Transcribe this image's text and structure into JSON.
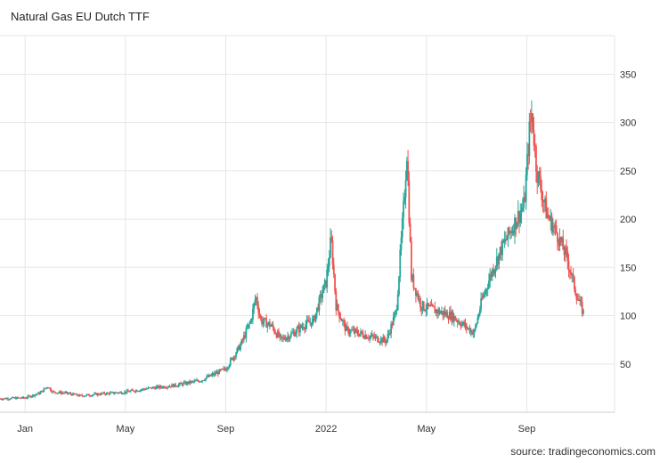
{
  "title": "Natural Gas EU Dutch TTF",
  "source": "source: tradingeconomics.com",
  "chart_data": {
    "type": "candlestick",
    "title": "Natural Gas EU Dutch TTF",
    "xlabel": "",
    "ylabel": "",
    "ylim": [
      0,
      390
    ],
    "y_ticks": [
      50,
      100,
      150,
      200,
      250,
      300,
      350
    ],
    "x_ticks": [
      "Jan",
      "May",
      "Sep",
      "2022",
      "May",
      "Sep"
    ],
    "x_tick_months": [
      1,
      5,
      9,
      13,
      17,
      21
    ],
    "x_range_months": [
      0,
      24.5
    ],
    "grid": true,
    "up_color": "#26a69a",
    "down_color": "#ef5350",
    "price_path": [
      [
        0.0,
        14
      ],
      [
        1.0,
        15
      ],
      [
        1.6,
        20
      ],
      [
        1.9,
        27
      ],
      [
        2.1,
        21
      ],
      [
        2.6,
        20
      ],
      [
        3.2,
        17
      ],
      [
        4.0,
        19
      ],
      [
        5.0,
        21
      ],
      [
        6.0,
        25
      ],
      [
        7.0,
        28
      ],
      [
        8.0,
        33
      ],
      [
        9.0,
        45
      ],
      [
        9.6,
        70
      ],
      [
        10.0,
        95
      ],
      [
        10.2,
        120
      ],
      [
        10.4,
        95
      ],
      [
        10.8,
        90
      ],
      [
        11.2,
        75
      ],
      [
        11.7,
        82
      ],
      [
        12.1,
        90
      ],
      [
        12.5,
        95
      ],
      [
        12.8,
        120
      ],
      [
        13.0,
        135
      ],
      [
        13.2,
        180
      ],
      [
        13.4,
        110
      ],
      [
        13.8,
        85
      ],
      [
        14.3,
        82
      ],
      [
        14.8,
        78
      ],
      [
        15.4,
        74
      ],
      [
        15.8,
        105
      ],
      [
        16.1,
        215
      ],
      [
        16.22,
        270
      ],
      [
        16.4,
        140
      ],
      [
        16.8,
        110
      ],
      [
        17.4,
        105
      ],
      [
        18.0,
        100
      ],
      [
        18.5,
        90
      ],
      [
        18.9,
        82
      ],
      [
        19.2,
        115
      ],
      [
        19.6,
        145
      ],
      [
        20.0,
        170
      ],
      [
        20.4,
        190
      ],
      [
        20.9,
        215
      ],
      [
        21.1,
        290
      ],
      [
        21.2,
        310
      ],
      [
        21.4,
        250
      ],
      [
        21.8,
        205
      ],
      [
        22.2,
        185
      ],
      [
        22.6,
        160
      ],
      [
        23.0,
        120
      ],
      [
        23.3,
        100
      ]
    ]
  }
}
